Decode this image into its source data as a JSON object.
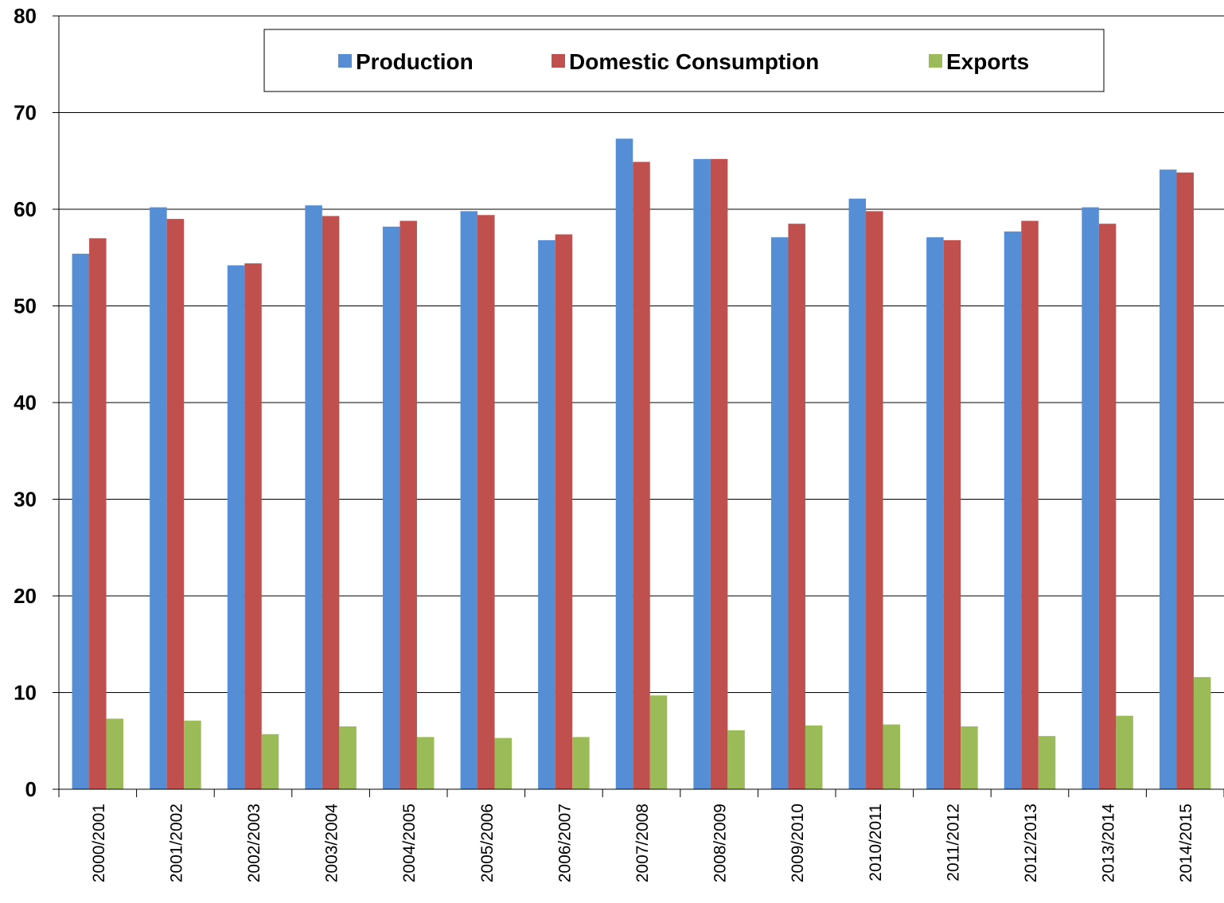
{
  "chart_data": {
    "type": "bar",
    "title": "",
    "xlabel": "",
    "ylabel": "",
    "ylim": [
      0,
      80
    ],
    "yticks": [
      0,
      10,
      20,
      30,
      40,
      50,
      60,
      70,
      80
    ],
    "grid": "horizontal",
    "legend_position": "top",
    "categories": [
      "2000/2001",
      "2001/2002",
      "2002/2003",
      "2003/2004",
      "2004/2005",
      "2005/2006",
      "2006/2007",
      "2007/2008",
      "2008/2009",
      "2009/2010",
      "2010/2011",
      "2011/2012",
      "2012/2013",
      "2013/2014",
      "2014/2015"
    ],
    "series": [
      {
        "name": "Production",
        "color": "#558ED5",
        "values": [
          55.4,
          60.2,
          54.2,
          60.4,
          58.2,
          59.8,
          56.8,
          67.3,
          65.2,
          57.1,
          61.1,
          57.1,
          57.7,
          60.2,
          64.1
        ]
      },
      {
        "name": "Domestic Consumption",
        "color": "#C0504D",
        "values": [
          57.0,
          59.0,
          54.4,
          59.3,
          58.8,
          59.4,
          57.4,
          64.9,
          65.2,
          58.5,
          59.8,
          56.8,
          58.8,
          58.5,
          63.8
        ]
      },
      {
        "name": "Exports",
        "color": "#9BBB59",
        "values": [
          7.3,
          7.1,
          5.7,
          6.5,
          5.4,
          5.3,
          5.4,
          9.7,
          6.1,
          6.6,
          6.7,
          6.5,
          5.5,
          7.6,
          11.6
        ]
      }
    ]
  }
}
